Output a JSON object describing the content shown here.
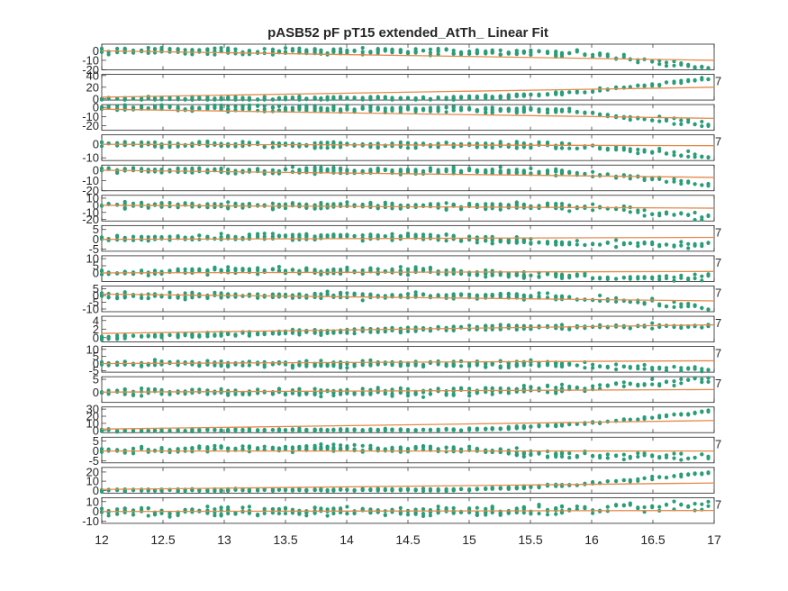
{
  "chart_data": {
    "type": "scatter",
    "title": "pASB52 pF pT15 extended_AtTh_ Linear Fit",
    "xlabel": "",
    "ylabel": "",
    "xlim": [
      12,
      17
    ],
    "xticks": [
      "12",
      "12.5",
      "13",
      "13.5",
      "14",
      "14.5",
      "15",
      "15.5",
      "16",
      "16.5",
      "17"
    ],
    "colors": {
      "points": "#2a9d78",
      "fit": "#e58a4c",
      "axes": "#262626",
      "grid": "#bdbdbd"
    },
    "panels": [
      {
        "ylim": [
          -20,
          7
        ],
        "yticks": [
          "0",
          "-10",
          "-20"
        ],
        "right_label": "",
        "profile": "dropEnd",
        "amp": 20,
        "noise": 3,
        "fit": [
          0,
          -10
        ]
      },
      {
        "ylim": [
          -2,
          42
        ],
        "yticks": [
          "40",
          "20",
          "0"
        ],
        "right_label": "7",
        "profile": "riseEnd",
        "amp": 36,
        "noise": 2.5,
        "fit": [
          3,
          20
        ]
      },
      {
        "ylim": [
          -25,
          3
        ],
        "yticks": [
          "0",
          "-10",
          "-20"
        ],
        "right_label": "",
        "profile": "dropLin",
        "amp": 20,
        "noise": 3,
        "fit": [
          -2,
          -12
        ]
      },
      {
        "ylim": [
          -12,
          7
        ],
        "yticks": [
          "0",
          "-10"
        ],
        "right_label": "7",
        "profile": "dropEnd",
        "amp": 10,
        "noise": 2,
        "fit": [
          0,
          -1
        ]
      },
      {
        "ylim": [
          -20,
          5
        ],
        "yticks": [
          "0",
          "-10",
          "-20"
        ],
        "right_label": "",
        "profile": "dropEnd",
        "amp": 15,
        "noise": 2.5,
        "fit": [
          0,
          -7
        ]
      },
      {
        "ylim": [
          -22,
          14
        ],
        "yticks": [
          "10",
          "0",
          "-10",
          "-20"
        ],
        "right_label": "",
        "profile": "dropEnd",
        "amp": 17,
        "noise": 4,
        "fit": [
          0,
          -4
        ]
      },
      {
        "ylim": [
          -6,
          7
        ],
        "yticks": [
          "5",
          "0",
          "-5"
        ],
        "right_label": "7",
        "profile": "bump",
        "amp": 4,
        "noise": 1.5,
        "fit": [
          0,
          1
        ]
      },
      {
        "ylim": [
          -6,
          12
        ],
        "yticks": [
          "10",
          "5",
          "0"
        ],
        "right_label": "7",
        "profile": "bump",
        "amp": 5,
        "noise": 2,
        "fit": [
          0,
          1
        ]
      },
      {
        "ylim": [
          -12,
          7
        ],
        "yticks": [
          "5",
          "0",
          "-5",
          "-10"
        ],
        "right_label": "7",
        "profile": "dropEnd",
        "amp": 10,
        "noise": 2,
        "fit": [
          1,
          -4
        ]
      },
      {
        "ylim": [
          -1,
          5
        ],
        "yticks": [
          "4",
          "2",
          "0"
        ],
        "right_label": "7",
        "profile": "riseLin",
        "amp": 3,
        "noise": 0.5,
        "fit": [
          1,
          3
        ]
      },
      {
        "ylim": [
          -6,
          12
        ],
        "yticks": [
          "10",
          "5",
          "0",
          "-5"
        ],
        "right_label": "7",
        "profile": "dropEnd",
        "amp": 5,
        "noise": 2,
        "fit": [
          0,
          2
        ]
      },
      {
        "ylim": [
          -4,
          6
        ],
        "yticks": [
          "5",
          "0"
        ],
        "right_label": "7",
        "profile": "riseEnd",
        "amp": 5,
        "noise": 1.3,
        "fit": [
          0,
          1
        ]
      },
      {
        "ylim": [
          -3,
          33
        ],
        "yticks": [
          "30",
          "20",
          "10",
          "0"
        ],
        "right_label": "",
        "profile": "riseEnd",
        "amp": 28,
        "noise": 1.5,
        "fit": [
          2,
          14
        ]
      },
      {
        "ylim": [
          -6,
          7
        ],
        "yticks": [
          "5",
          "0",
          "-5"
        ],
        "right_label": "7",
        "profile": "bump",
        "amp": 4,
        "noise": 1.5,
        "fit": [
          0,
          0
        ]
      },
      {
        "ylim": [
          -3,
          25
        ],
        "yticks": [
          "20",
          "10",
          "0"
        ],
        "right_label": "",
        "profile": "riseEnd",
        "amp": 20,
        "noise": 1.2,
        "fit": [
          1,
          8
        ]
      },
      {
        "ylim": [
          -12,
          14
        ],
        "yticks": [
          "10",
          "0",
          "-10"
        ],
        "right_label": "7",
        "profile": "riseEnd",
        "amp": 6,
        "noise": 4,
        "fit": [
          0,
          1
        ]
      }
    ]
  }
}
